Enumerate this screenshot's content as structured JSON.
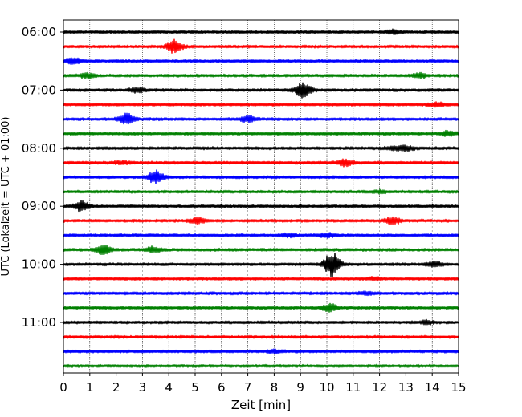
{
  "chart_data": {
    "type": "line",
    "title": "",
    "xlabel": "Zeit  [min]",
    "ylabel": "UTC (Lokalzeit = UTC + 01:00)",
    "xlim": [
      0,
      15
    ],
    "x_ticks": [
      0,
      1,
      2,
      3,
      4,
      5,
      6,
      7,
      8,
      9,
      10,
      11,
      12,
      13,
      14,
      15
    ],
    "y_ticks": [
      "06:00",
      "07:00",
      "08:00",
      "09:00",
      "10:00",
      "11:00"
    ],
    "grid": "vertical dotted",
    "colors": [
      "#000000",
      "#ff0000",
      "#0000ff",
      "#008000"
    ],
    "rows": [
      {
        "start": "06:00",
        "color": "#000000",
        "events": [
          {
            "t": 12.5,
            "amp": 0.25
          }
        ]
      },
      {
        "start": "06:15",
        "color": "#ff0000",
        "events": [
          {
            "t": 4.2,
            "amp": 0.85
          }
        ]
      },
      {
        "start": "06:30",
        "color": "#0000ff",
        "events": [
          {
            "t": 0.4,
            "amp": 0.45
          }
        ]
      },
      {
        "start": "06:45",
        "color": "#008000",
        "events": [
          {
            "t": 0.9,
            "amp": 0.3
          },
          {
            "t": 13.5,
            "amp": 0.3
          }
        ]
      },
      {
        "start": "07:00",
        "color": "#000000",
        "events": [
          {
            "t": 2.8,
            "amp": 0.3
          },
          {
            "t": 9.1,
            "amp": 1.0
          }
        ]
      },
      {
        "start": "07:15",
        "color": "#ff0000",
        "events": [
          {
            "t": 14.2,
            "amp": 0.25
          }
        ]
      },
      {
        "start": "07:30",
        "color": "#0000ff",
        "events": [
          {
            "t": 2.4,
            "amp": 0.75
          },
          {
            "t": 7.0,
            "amp": 0.35
          }
        ]
      },
      {
        "start": "07:45",
        "color": "#008000",
        "events": [
          {
            "t": 14.6,
            "amp": 0.3
          }
        ]
      },
      {
        "start": "08:00",
        "color": "#000000",
        "events": [
          {
            "t": 12.5,
            "amp": 0.2
          },
          {
            "t": 13.0,
            "amp": 0.3
          }
        ]
      },
      {
        "start": "08:15",
        "color": "#ff0000",
        "events": [
          {
            "t": 10.7,
            "amp": 0.45
          },
          {
            "t": 2.2,
            "amp": 0.2
          }
        ]
      },
      {
        "start": "08:30",
        "color": "#0000ff",
        "events": [
          {
            "t": 3.5,
            "amp": 0.85
          }
        ]
      },
      {
        "start": "08:45",
        "color": "#008000",
        "events": [
          {
            "t": 12.0,
            "amp": 0.15
          }
        ]
      },
      {
        "start": "09:00",
        "color": "#000000",
        "events": [
          {
            "t": 0.7,
            "amp": 0.65
          }
        ]
      },
      {
        "start": "09:15",
        "color": "#ff0000",
        "events": [
          {
            "t": 5.1,
            "amp": 0.4
          },
          {
            "t": 12.5,
            "amp": 0.45
          }
        ]
      },
      {
        "start": "09:30",
        "color": "#0000ff",
        "events": [
          {
            "t": 8.5,
            "amp": 0.2
          },
          {
            "t": 10.0,
            "amp": 0.25
          }
        ]
      },
      {
        "start": "09:45",
        "color": "#008000",
        "events": [
          {
            "t": 1.5,
            "amp": 0.6
          },
          {
            "t": 3.4,
            "amp": 0.35
          }
        ]
      },
      {
        "start": "10:00",
        "color": "#000000",
        "events": [
          {
            "t": 10.2,
            "amp": 1.6
          },
          {
            "t": 14.1,
            "amp": 0.3
          }
        ]
      },
      {
        "start": "10:15",
        "color": "#ff0000",
        "events": [
          {
            "t": 11.8,
            "amp": 0.15
          }
        ]
      },
      {
        "start": "10:30",
        "color": "#0000ff",
        "events": [
          {
            "t": 11.5,
            "amp": 0.15
          }
        ]
      },
      {
        "start": "10:45",
        "color": "#008000",
        "events": [
          {
            "t": 10.1,
            "amp": 0.45
          }
        ]
      },
      {
        "start": "11:00",
        "color": "#000000",
        "events": [
          {
            "t": 13.8,
            "amp": 0.2
          }
        ]
      },
      {
        "start": "11:15",
        "color": "#ff0000",
        "events": []
      },
      {
        "start": "11:30",
        "color": "#0000ff",
        "events": [
          {
            "t": 8.0,
            "amp": 0.15
          }
        ]
      },
      {
        "start": "11:45",
        "color": "#008000",
        "events": []
      }
    ]
  }
}
